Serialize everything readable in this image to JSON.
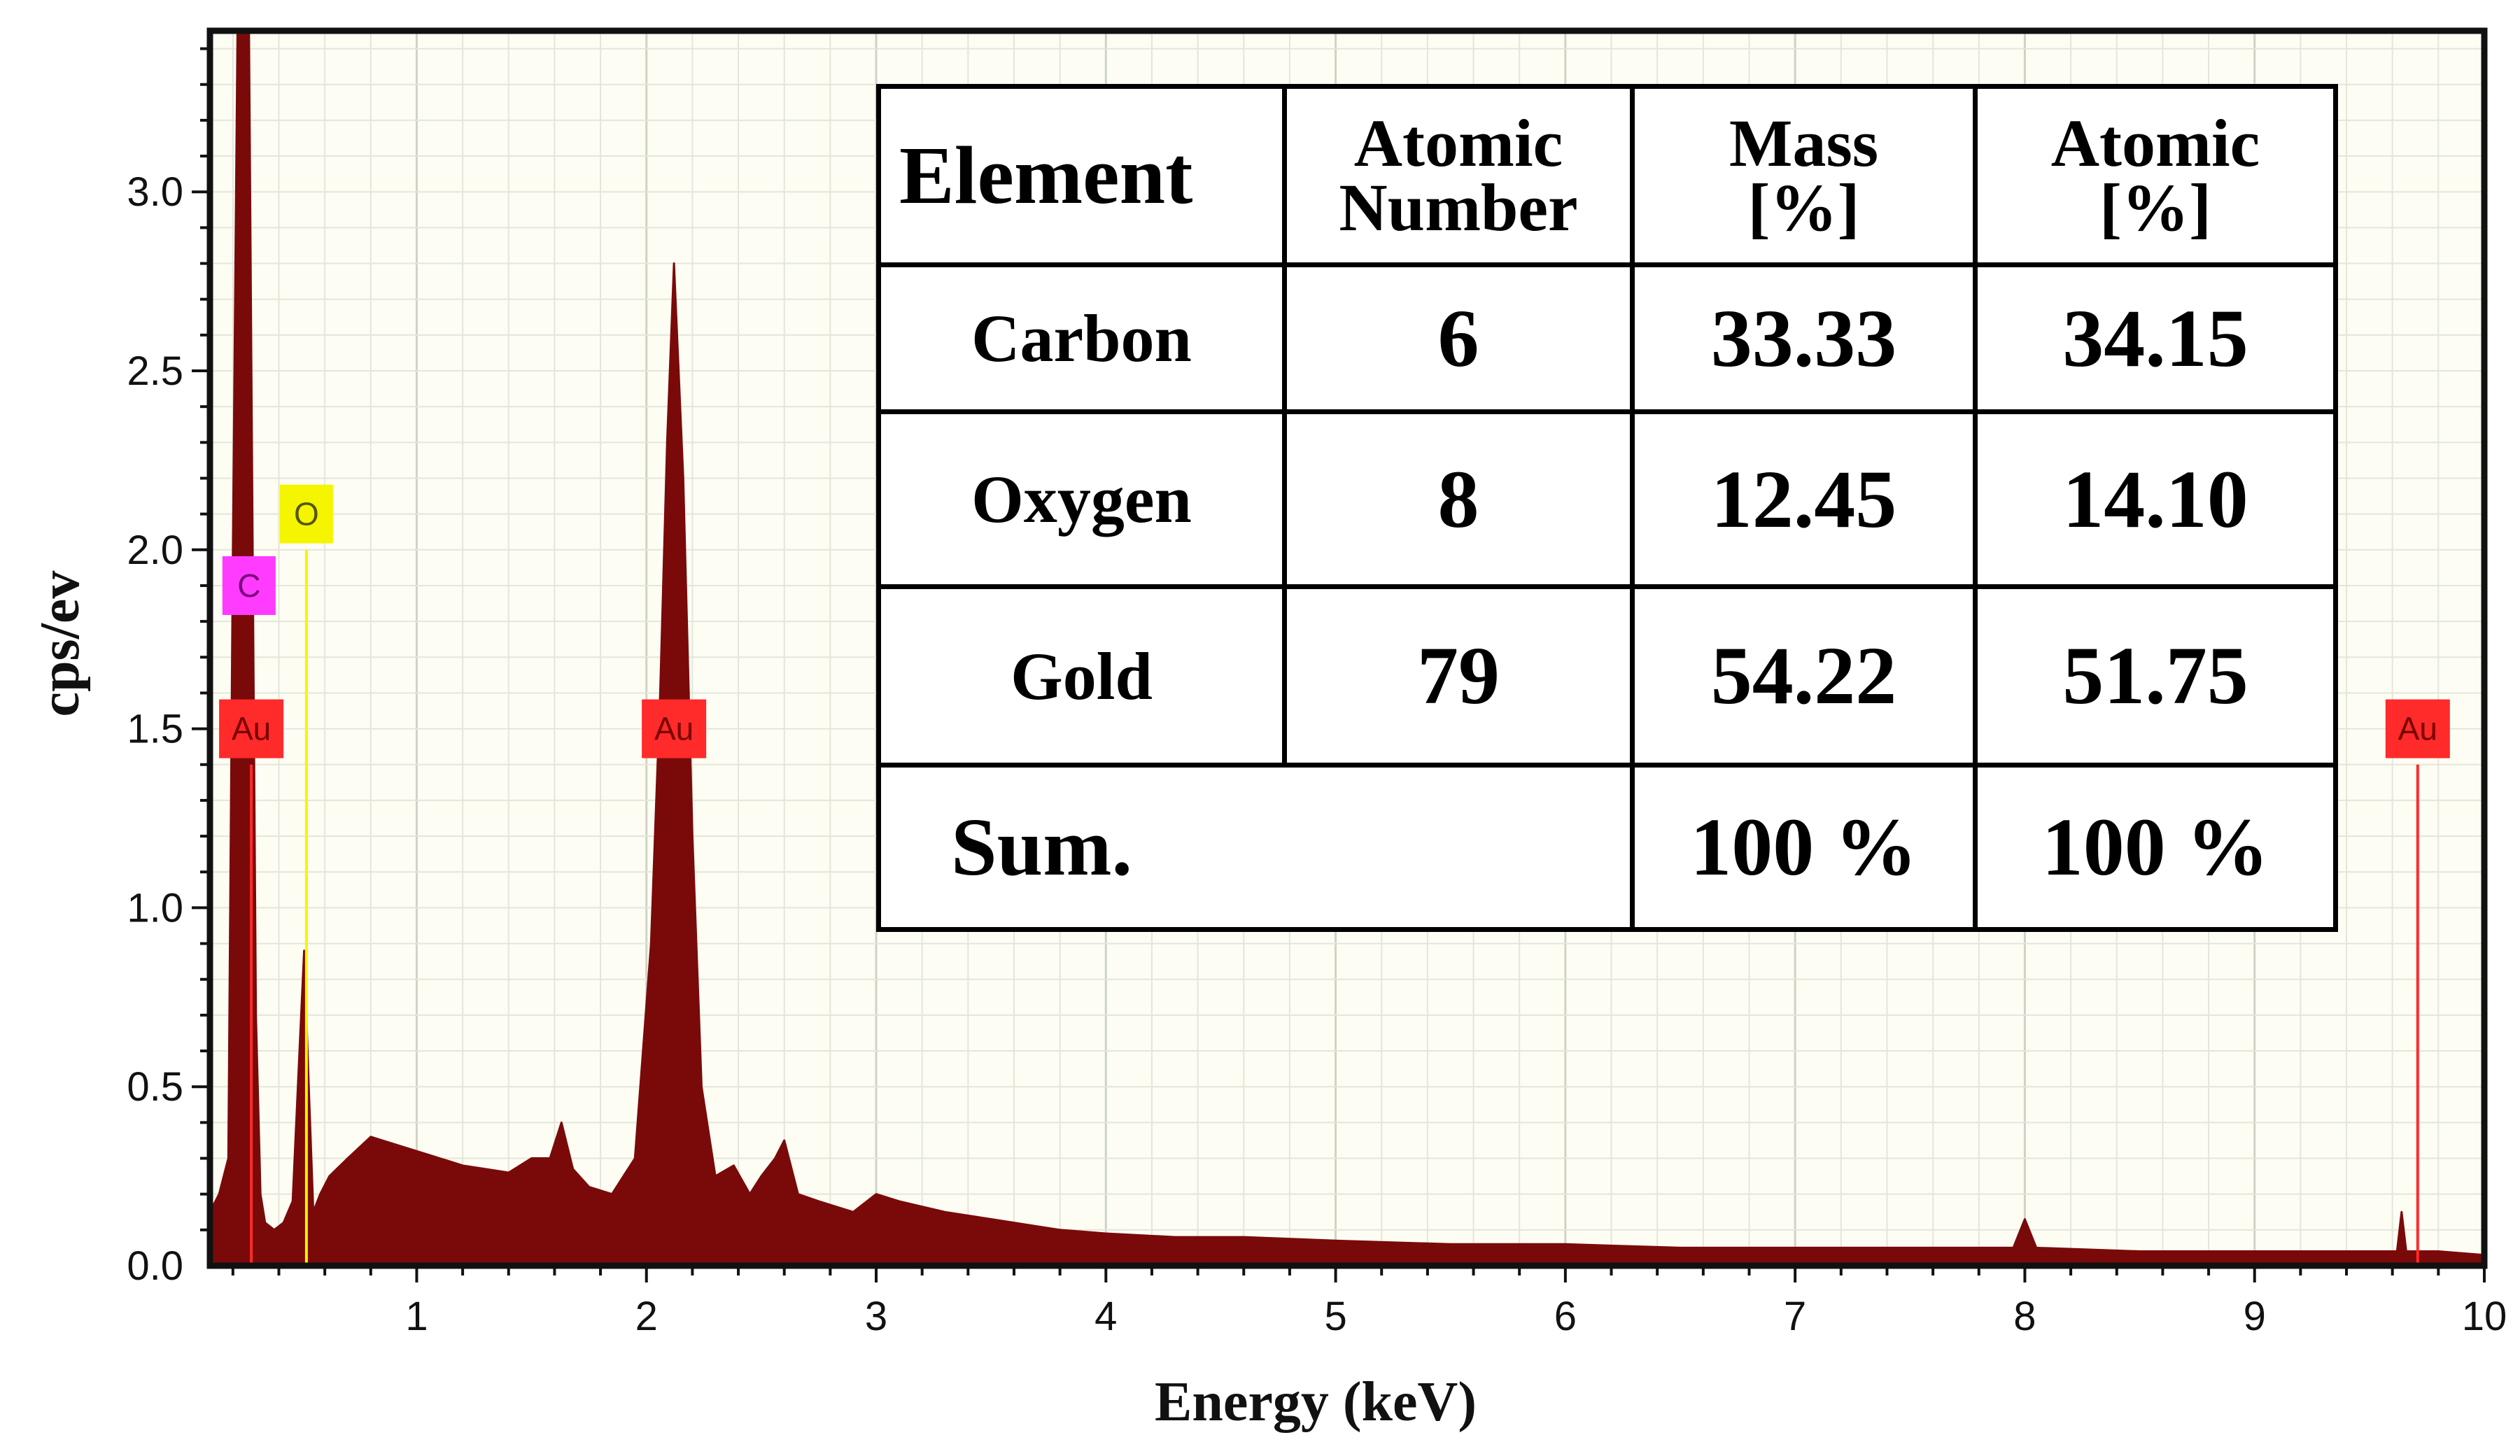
{
  "chart_data": {
    "type": "line",
    "xlabel": "Energy (keV)",
    "ylabel": "cps/ev",
    "xlim": [
      0.1,
      10
    ],
    "ylim": [
      0,
      3.45
    ],
    "x_ticks": [
      1,
      2,
      3,
      4,
      5,
      6,
      7,
      8,
      9,
      10
    ],
    "y_ticks": [
      0.0,
      0.5,
      1.0,
      1.5,
      2.0,
      2.5,
      3.0
    ],
    "y_tick_labels": [
      "0.0",
      "0.5",
      "1.0",
      "1.5",
      "2.0",
      "2.5",
      "3.0"
    ],
    "grid": true,
    "fill_color": "#7a0a0a",
    "series": [
      {
        "x": [
          0.1,
          0.14,
          0.18,
          0.2,
          0.22,
          0.24,
          0.25,
          0.27,
          0.3,
          0.32,
          0.34,
          0.38,
          0.42,
          0.46,
          0.49,
          0.51,
          0.53,
          0.55,
          0.58,
          0.62,
          0.7,
          0.8,
          0.9,
          1.0,
          1.1,
          1.2,
          1.3,
          1.4,
          1.5,
          1.58,
          1.63,
          1.68,
          1.75,
          1.85,
          1.95,
          2.02,
          2.06,
          2.09,
          2.12,
          2.16,
          2.2,
          2.24,
          2.3,
          2.38,
          2.45,
          2.5,
          2.56,
          2.6,
          2.66,
          2.75,
          2.9,
          3.0,
          3.1,
          3.3,
          3.5,
          3.8,
          4.0,
          4.3,
          4.6,
          5.0,
          5.5,
          6.0,
          6.5,
          7.0,
          7.5,
          7.95,
          8.0,
          8.05,
          8.5,
          9.0,
          9.5,
          9.62,
          9.64,
          9.66,
          9.8,
          10.0
        ],
        "y": [
          0.15,
          0.2,
          0.3,
          2.0,
          3.45,
          3.45,
          3.45,
          3.45,
          0.7,
          0.2,
          0.12,
          0.1,
          0.12,
          0.18,
          0.6,
          0.88,
          0.5,
          0.15,
          0.2,
          0.25,
          0.3,
          0.36,
          0.34,
          0.32,
          0.3,
          0.28,
          0.27,
          0.26,
          0.3,
          0.3,
          0.4,
          0.27,
          0.22,
          0.2,
          0.3,
          0.9,
          1.6,
          2.3,
          2.8,
          2.2,
          1.2,
          0.5,
          0.25,
          0.28,
          0.2,
          0.25,
          0.3,
          0.35,
          0.2,
          0.18,
          0.15,
          0.2,
          0.18,
          0.15,
          0.13,
          0.1,
          0.09,
          0.08,
          0.08,
          0.07,
          0.06,
          0.06,
          0.05,
          0.05,
          0.05,
          0.05,
          0.13,
          0.05,
          0.04,
          0.04,
          0.04,
          0.04,
          0.15,
          0.04,
          0.04,
          0.03
        ]
      }
    ],
    "markers": [
      {
        "label": "Au",
        "x": 0.28,
        "y": 1.5,
        "color": "#ff2a2a",
        "text_color": "#7a0000",
        "line_top": 1.4
      },
      {
        "label": "C",
        "x": 0.27,
        "y": 1.9,
        "color": "#ff3bff",
        "text_color": "#7a007a",
        "line_top": null
      },
      {
        "label": "O",
        "x": 0.52,
        "y": 2.1,
        "color": "#f5f500",
        "text_color": "#555500",
        "line_top": 2.0
      },
      {
        "label": "Au",
        "x": 2.12,
        "y": 1.5,
        "color": "#ff2a2a",
        "text_color": "#7a0000",
        "line_top": null
      },
      {
        "label": "Au",
        "x": 9.71,
        "y": 1.5,
        "color": "#ff2a2a",
        "text_color": "#7a0000",
        "line_top": 1.4
      }
    ]
  },
  "table": {
    "headers": [
      {
        "line1": "Element",
        "line2": ""
      },
      {
        "line1": "Atomic",
        "line2": "Number"
      },
      {
        "line1": "Mass",
        "line2": "[%]"
      },
      {
        "line1": "Atomic",
        "line2": "[%]"
      }
    ],
    "rows": [
      {
        "element": "Carbon",
        "atomic_number": "6",
        "mass": "33.33",
        "atomic": "34.15"
      },
      {
        "element": "Oxygen",
        "atomic_number": "8",
        "mass": "12.45",
        "atomic": "14.10"
      },
      {
        "element": "Gold",
        "atomic_number": "79",
        "mass": "54.22",
        "atomic": "51.75"
      }
    ],
    "sum": {
      "label": "Sum.",
      "mass": "100 %",
      "atomic": "100 %"
    }
  }
}
